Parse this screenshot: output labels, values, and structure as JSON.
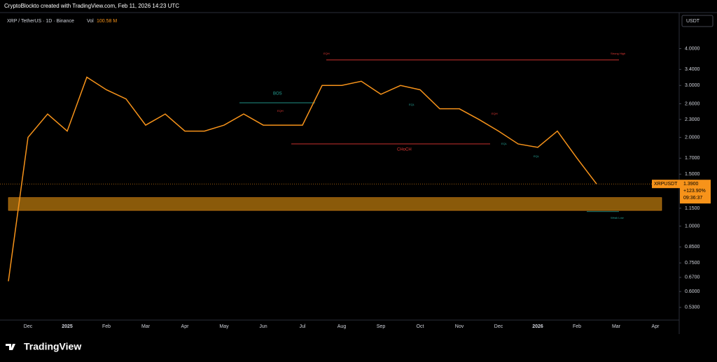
{
  "header": "CryptoBlockto created with TradingView.com, Feb 11, 2026 14:23 UTC",
  "symbol": "XRP / TetherUS · 1D · Binance",
  "volume_label": "Vol",
  "volume": "100.58 M",
  "currency": "USDT",
  "brand": "TradingView",
  "chart_data": {
    "type": "line",
    "log_scale": true,
    "categories": [
      null,
      "Dec",
      null,
      "2025",
      null,
      "Feb",
      null,
      "Mar",
      null,
      "Apr",
      null,
      "May",
      null,
      "Jun",
      null,
      "Jul",
      null,
      "Aug",
      null,
      "Sep",
      null,
      "Oct",
      null,
      "Nov",
      null,
      "Dec",
      null,
      "2026",
      null,
      "Feb",
      null,
      "Mar",
      null,
      "Apr"
    ],
    "series": [
      {
        "name": "XRPUSDT",
        "color": "#f7931a",
        "values": [
          0.65,
          2.0,
          2.4,
          2.1,
          3.2,
          2.9,
          2.7,
          2.2,
          2.4,
          2.1,
          2.1,
          2.2,
          2.4,
          2.2,
          2.2,
          2.2,
          3.0,
          3.0,
          3.1,
          2.8,
          3.0,
          2.9,
          2.5,
          2.5,
          2.3,
          2.1,
          1.9,
          1.85,
          2.1,
          1.7,
          1.39,
          null,
          null,
          null
        ]
      }
    ],
    "ylim": [
      0.48,
      5.3
    ],
    "yticks": [
      {
        "value": 4.0,
        "label": "4.0000"
      },
      {
        "value": 3.4,
        "label": "3.4000"
      },
      {
        "value": 3.0,
        "label": "3.0000"
      },
      {
        "value": 2.6,
        "label": "2.6000"
      },
      {
        "value": 2.3,
        "label": "2.3000"
      },
      {
        "value": 2.0,
        "label": "2.0000"
      },
      {
        "value": 1.7,
        "label": "1.7000"
      },
      {
        "value": 1.5,
        "label": "1.5000"
      },
      {
        "value": 1.15,
        "label": "1.1500"
      },
      {
        "value": 1.0,
        "label": "1.0000"
      },
      {
        "value": 0.85,
        "label": "0.8500"
      },
      {
        "value": 0.75,
        "label": "0.7500"
      },
      {
        "value": 0.67,
        "label": "0.6700"
      },
      {
        "value": 0.6,
        "label": "0.6000"
      },
      {
        "value": 0.53,
        "label": "0.5300"
      }
    ],
    "last_price": {
      "value": 1.39,
      "label": "1.3900"
    },
    "change": "+123.90%",
    "countdown": "09:36:37",
    "zone": [
      1.13,
      1.25
    ],
    "zone_color": "#8a5a0a",
    "levels": [
      {
        "name": "Strong High",
        "value": 3.66,
        "color": "#e53935"
      },
      {
        "name": "BOS",
        "value": 2.62,
        "color": "#26a69a"
      },
      {
        "name": "CHoCH",
        "value": 1.9,
        "color": "#e53935"
      },
      {
        "name": "Weak Low",
        "value": 1.12,
        "color": "#26a69a"
      }
    ],
    "markers": [
      "EQH",
      "EQH",
      "EQL",
      "EQH",
      "EQL",
      "EQL"
    ]
  }
}
